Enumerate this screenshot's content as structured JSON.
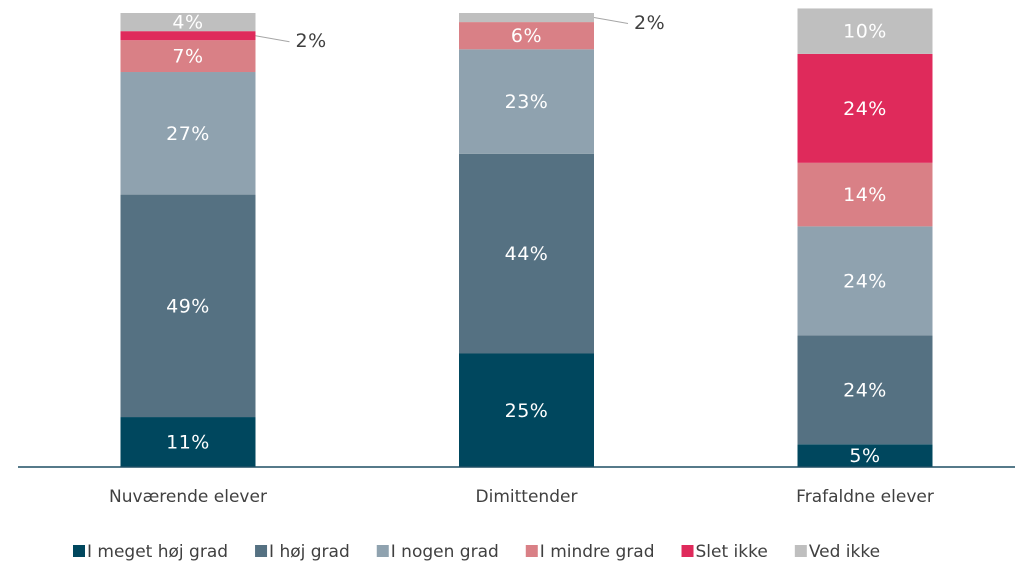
{
  "chart_data": {
    "type": "stacked_bar",
    "categories": [
      "Nuværende elever",
      "Dimittender",
      "Frafaldne elever"
    ],
    "ylim": [
      0,
      100
    ],
    "series": [
      {
        "name": "I meget høj grad",
        "color": "#00475e",
        "values": [
          11,
          25,
          5
        ],
        "value_labels": [
          "11%",
          "25%",
          "5%"
        ]
      },
      {
        "name": "I høj grad",
        "color": "#557182",
        "values": [
          49,
          44,
          24
        ],
        "value_labels": [
          "49%",
          "44%",
          "24%"
        ]
      },
      {
        "name": "I nogen grad",
        "color": "#8fa2af",
        "values": [
          27,
          23,
          24
        ],
        "value_labels": [
          "27%",
          "23%",
          "24%"
        ]
      },
      {
        "name": "I mindre grad",
        "color": "#d98086",
        "values": [
          7,
          6,
          14
        ],
        "value_labels": [
          "7%",
          "6%",
          "14%"
        ]
      },
      {
        "name": "Slet ikke",
        "color": "#df2a5b",
        "values": [
          2,
          null,
          24
        ],
        "value_labels": [
          "2%",
          null,
          "24%"
        ]
      },
      {
        "name": "Ved ikke",
        "color": "#bfbfbf",
        "values": [
          4,
          2,
          10
        ],
        "value_labels": [
          "4%",
          "2%",
          "10%"
        ]
      }
    ]
  }
}
